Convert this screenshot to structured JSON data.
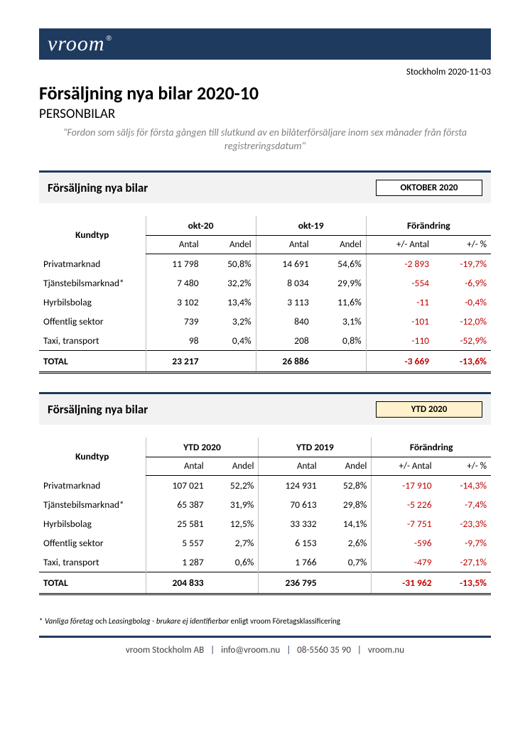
{
  "header": {
    "logo_text": "vroom",
    "dateline": "Stockholm 2020-11-03",
    "title": "Försäljning nya bilar 2020-10",
    "subtitle": "PERSONBILAR",
    "quote": "\"Fordon som säljs för första gången till slutkund av en bilåterförsäljare inom sex månader från första registreringsdatum\""
  },
  "labels": {
    "kundtyp": "Kundtyp",
    "antal": "Antal",
    "andel": "Andel",
    "forandring": "Förändring",
    "pm_antal": "+/- Antal",
    "pm_pct": "+/- %",
    "total": "TOTAL"
  },
  "section1": {
    "title": "Försäljning nya bilar",
    "badge": "OKTOBER 2020",
    "col_a": "okt-20",
    "col_b": "okt-19",
    "rows": [
      {
        "label": "Privatmarknad",
        "a_n": "11 798",
        "a_p": "50,8%",
        "b_n": "14 691",
        "b_p": "54,6%",
        "d_n": "-2 893",
        "d_p": "-19,7%",
        "neg": true
      },
      {
        "label": "Tjänstebilsmarknad*",
        "a_n": "7 480",
        "a_p": "32,2%",
        "b_n": "8 034",
        "b_p": "29,9%",
        "d_n": "-554",
        "d_p": "-6,9%",
        "neg": true
      },
      {
        "label": "Hyrbilsbolag",
        "a_n": "3 102",
        "a_p": "13,4%",
        "b_n": "3 113",
        "b_p": "11,6%",
        "d_n": "-11",
        "d_p": "-0,4%",
        "neg": true
      },
      {
        "label": "Offentlig sektor",
        "a_n": "739",
        "a_p": "3,2%",
        "b_n": "840",
        "b_p": "3,1%",
        "d_n": "-101",
        "d_p": "-12,0%",
        "neg": true
      },
      {
        "label": "Taxi, transport",
        "a_n": "98",
        "a_p": "0,4%",
        "b_n": "208",
        "b_p": "0,8%",
        "d_n": "-110",
        "d_p": "-52,9%",
        "neg": true
      }
    ],
    "total": {
      "a_n": "23 217",
      "b_n": "26 886",
      "d_n": "-3 669",
      "d_p": "-13,6%",
      "neg": true
    }
  },
  "section2": {
    "title": "Försäljning nya bilar",
    "badge": "YTD 2020",
    "col_a": "YTD 2020",
    "col_b": "YTD 2019",
    "rows": [
      {
        "label": "Privatmarknad",
        "a_n": "107 021",
        "a_p": "52,2%",
        "b_n": "124 931",
        "b_p": "52,8%",
        "d_n": "-17 910",
        "d_p": "-14,3%",
        "neg": true
      },
      {
        "label": "Tjänstebilsmarknad*",
        "a_n": "65 387",
        "a_p": "31,9%",
        "b_n": "70 613",
        "b_p": "29,8%",
        "d_n": "-5 226",
        "d_p": "-7,4%",
        "neg": true
      },
      {
        "label": "Hyrbilsbolag",
        "a_n": "25 581",
        "a_p": "12,5%",
        "b_n": "33 332",
        "b_p": "14,1%",
        "d_n": "-7 751",
        "d_p": "-23,3%",
        "neg": true
      },
      {
        "label": "Offentlig sektor",
        "a_n": "5 557",
        "a_p": "2,7%",
        "b_n": "6 153",
        "b_p": "2,6%",
        "d_n": "-596",
        "d_p": "-9,7%",
        "neg": true
      },
      {
        "label": "Taxi, transport",
        "a_n": "1 287",
        "a_p": "0,6%",
        "b_n": "1 766",
        "b_p": "0,7%",
        "d_n": "-479",
        "d_p": "-27,1%",
        "neg": true
      }
    ],
    "total": {
      "a_n": "204 833",
      "b_n": "236 795",
      "d_n": "-31 962",
      "d_p": "-13,5%",
      "neg": true
    }
  },
  "footnote": {
    "prefix": "* ",
    "em1": "Vanliga företag",
    "mid": "  och ",
    "em2": "Leasingbolag - brukare ej identifierbar",
    "suffix": "  enligt vroom Företagsklassificering"
  },
  "footer": {
    "company": "vroom Stockholm AB",
    "email": "info@vroom.nu",
    "phone": "08-5560 35 90",
    "site": "vroom.nu"
  }
}
